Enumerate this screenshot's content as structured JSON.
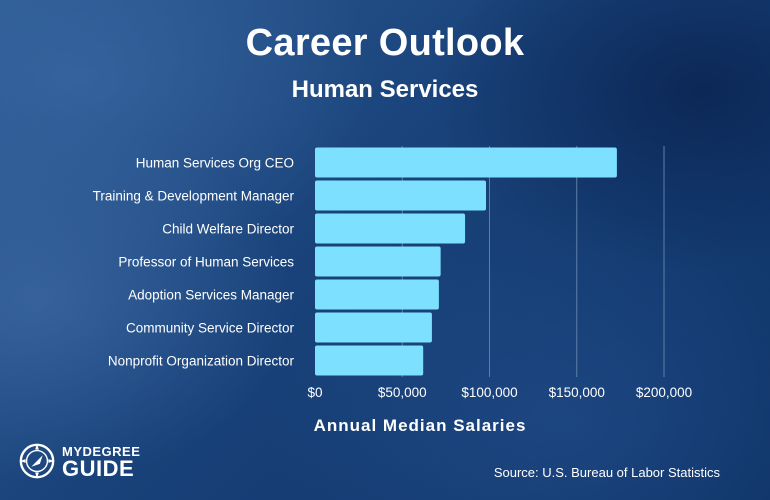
{
  "header": {
    "title": "Career Outlook",
    "subtitle": "Human Services"
  },
  "footer": {
    "source": "Source: U.S. Bureau of Labor Statistics",
    "logo_top": "MYDEGREE",
    "logo_bottom": "GUIDE"
  },
  "colors": {
    "bar": "#7ee0ff",
    "gridline": "#5f7fa8",
    "text": "#ffffff"
  },
  "chart_data": {
    "type": "bar",
    "orientation": "horizontal",
    "title": "Career Outlook",
    "subtitle": "Human Services",
    "xlabel": "Annual Median Salaries",
    "ylabel": "",
    "categories": [
      "Human Services Org CEO",
      "Training & Development Manager",
      "Child Welfare Director",
      "Professor of Human Services",
      "Adoption Services Manager",
      "Community Service Director",
      "Nonprofit Organization Director"
    ],
    "values": [
      173000,
      98000,
      86000,
      72000,
      71000,
      67000,
      62000
    ],
    "xlim": [
      0,
      200000
    ],
    "xticks": [
      0,
      50000,
      100000,
      150000,
      200000
    ],
    "xtick_labels": [
      "$0",
      "$50,000",
      "$100,000",
      "$150,000",
      "$200,000"
    ],
    "grid": "vertical",
    "legend": "none"
  }
}
